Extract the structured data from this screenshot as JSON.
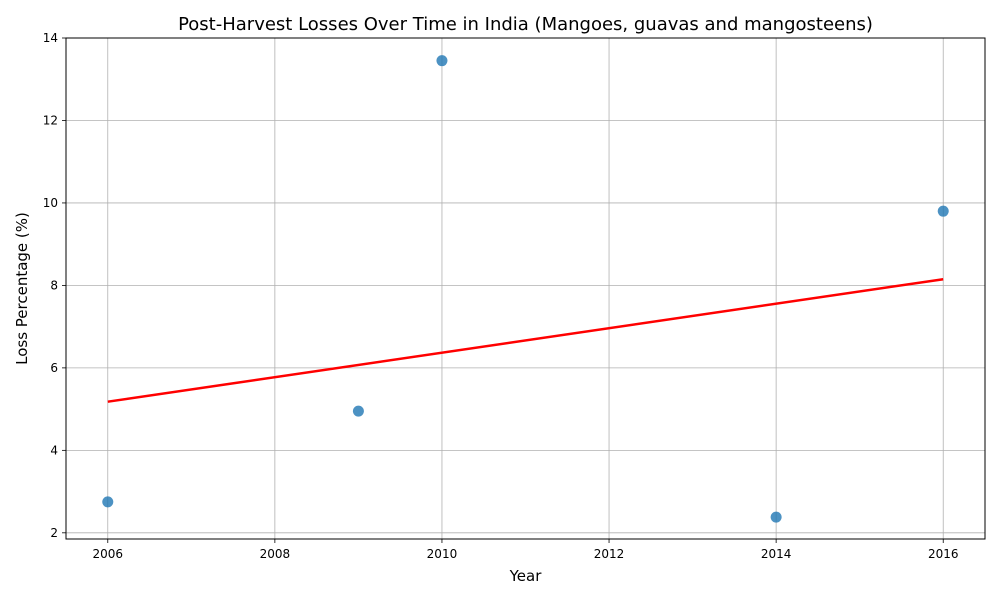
{
  "chart_data": {
    "type": "scatter",
    "title": "Post-Harvest Losses Over Time in India (Mangoes, guavas and mangosteens)",
    "xlabel": "Year",
    "ylabel": "Loss Percentage (%)",
    "xlim": [
      2005.5,
      2016.5
    ],
    "ylim": [
      1.85,
      14.0
    ],
    "xticks": [
      2006,
      2008,
      2010,
      2012,
      2014,
      2016
    ],
    "yticks": [
      2,
      4,
      6,
      8,
      10,
      12,
      14
    ],
    "grid": true,
    "points": [
      {
        "x": 2006,
        "y": 2.75
      },
      {
        "x": 2009,
        "y": 4.95
      },
      {
        "x": 2010,
        "y": 13.45
      },
      {
        "x": 2014,
        "y": 2.38
      },
      {
        "x": 2016,
        "y": 9.8
      }
    ],
    "trendline": {
      "x": [
        2006,
        2016
      ],
      "y": [
        5.18,
        8.15
      ]
    },
    "colors": {
      "points": "#1f77b4",
      "trendline": "#ff0000",
      "grid": "#b0b0b0"
    }
  }
}
